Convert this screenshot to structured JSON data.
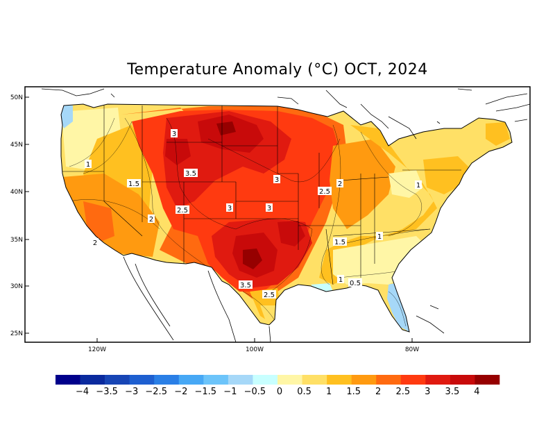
{
  "title": "Temperature Anomaly (°C) OCT, 2024",
  "axes": {
    "lat_ticks": [
      "50N",
      "45N",
      "40N",
      "35N",
      "30N",
      "25N"
    ],
    "lon_ticks": [
      "120W",
      "100W",
      "80W"
    ]
  },
  "contour_labels": [
    {
      "text": "3"
    },
    {
      "text": "3.5"
    },
    {
      "text": "1"
    },
    {
      "text": "1.5"
    },
    {
      "text": "2"
    },
    {
      "text": "2.5"
    },
    {
      "text": "3"
    },
    {
      "text": "3"
    },
    {
      "text": "3"
    },
    {
      "text": "2.5"
    },
    {
      "text": "2"
    },
    {
      "text": "1"
    },
    {
      "text": "2"
    },
    {
      "text": "1.5"
    },
    {
      "text": "1"
    },
    {
      "text": "1"
    },
    {
      "text": "0.5"
    },
    {
      "text": "3.5"
    },
    {
      "text": "2.5"
    }
  ],
  "legend": {
    "labels": [
      "−4",
      "−3.5",
      "−3",
      "−2.5",
      "−2",
      "−1.5",
      "−1",
      "−0.5",
      "0",
      "0.5",
      "1",
      "1.5",
      "2",
      "2.5",
      "3",
      "3.5",
      "4"
    ],
    "colors": [
      "#00008b",
      "#0a2a9e",
      "#1745b5",
      "#1e5fd0",
      "#2a7fe6",
      "#47a8f5",
      "#6cc4fa",
      "#a6d8f8",
      "#c8ffff",
      "#fff6a6",
      "#ffe066",
      "#ffc020",
      "#ff9a10",
      "#ff6a10",
      "#ff3a10",
      "#e01a10",
      "#c80a0a",
      "#960000"
    ]
  }
}
